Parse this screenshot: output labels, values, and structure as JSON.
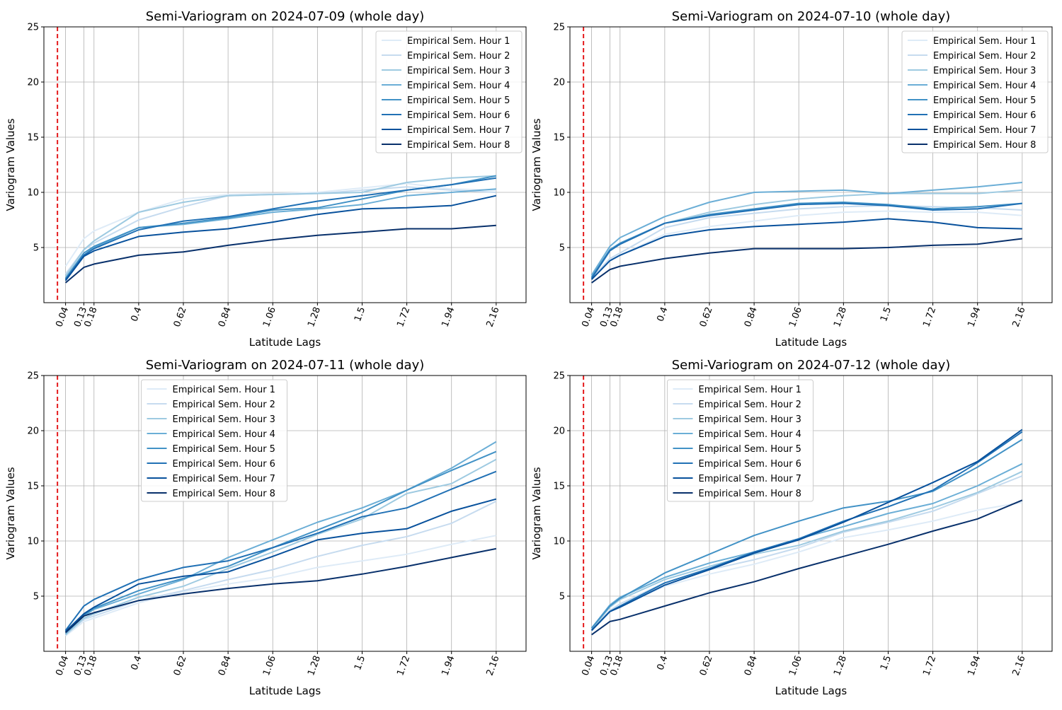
{
  "colors": {
    "hours": [
      "#deebf7",
      "#c6dbef",
      "#9ecae1",
      "#6baed6",
      "#4292c6",
      "#2171b5",
      "#08519c",
      "#08306b"
    ],
    "vline": "#e41a1c",
    "grid": "#b0b0b0"
  },
  "chart_data": [
    {
      "type": "line",
      "title": "Semi-Variogram on 2024-07-09 (whole day)",
      "xlabel": "Latitude Lags",
      "ylabel": "Variogram Values",
      "x": [
        0.04,
        0.13,
        0.18,
        0.4,
        0.62,
        0.84,
        1.06,
        1.28,
        1.5,
        1.72,
        1.94,
        2.16
      ],
      "x_tick_labels": [
        "0.04",
        "0.13",
        "0.18",
        "0.4",
        "0.62",
        "0.84",
        "1.06",
        "1.28",
        "1.5",
        "1.72",
        "1.94",
        "2.16"
      ],
      "y_ticks": [
        5,
        10,
        15,
        20,
        25
      ],
      "ylim": [
        0,
        25
      ],
      "vline_x": 0.0,
      "legend_position": "top-right",
      "series": [
        {
          "name": "Empirical Sem. Hour 1",
          "values": [
            3.3,
            5.8,
            6.5,
            8.2,
            9.4,
            9.8,
            9.9,
            10.0,
            10.4,
            10.8,
            10.3,
            10.2
          ]
        },
        {
          "name": "Empirical Sem. Hour 2",
          "values": [
            2.6,
            4.8,
            5.4,
            7.5,
            8.7,
            9.7,
            9.8,
            9.9,
            10.2,
            10.5,
            10.2,
            10.0
          ]
        },
        {
          "name": "Empirical Sem. Hour 3",
          "values": [
            2.4,
            4.8,
            5.6,
            8.2,
            9.1,
            9.7,
            9.8,
            9.9,
            10.0,
            10.9,
            11.3,
            11.5
          ]
        },
        {
          "name": "Empirical Sem. Hour 4",
          "values": [
            2.2,
            4.3,
            5.0,
            6.8,
            7.1,
            7.6,
            8.2,
            8.5,
            8.9,
            9.7,
            10.0,
            10.3
          ]
        },
        {
          "name": "Empirical Sem. Hour 5",
          "values": [
            2.2,
            4.5,
            5.1,
            6.8,
            7.2,
            7.7,
            8.4,
            8.6,
            9.4,
            10.2,
            10.7,
            11.5
          ]
        },
        {
          "name": "Empirical Sem. Hour 6",
          "values": [
            2.1,
            4.3,
            4.9,
            6.6,
            7.4,
            7.8,
            8.5,
            9.2,
            9.7,
            10.2,
            10.7,
            11.3
          ]
        },
        {
          "name": "Empirical Sem. Hour 7",
          "values": [
            2.0,
            4.2,
            4.7,
            6.0,
            6.4,
            6.7,
            7.3,
            8.0,
            8.5,
            8.6,
            8.8,
            9.7
          ]
        },
        {
          "name": "Empirical Sem. Hour 8",
          "values": [
            1.8,
            3.2,
            3.5,
            4.3,
            4.6,
            5.2,
            5.7,
            6.1,
            6.4,
            6.7,
            6.7,
            7.0
          ]
        }
      ]
    },
    {
      "type": "line",
      "title": "Semi-Variogram on 2024-07-10 (whole day)",
      "xlabel": "Latitude Lags",
      "ylabel": "Variogram Values",
      "x": [
        0.04,
        0.13,
        0.18,
        0.4,
        0.62,
        0.84,
        1.06,
        1.28,
        1.5,
        1.72,
        1.94,
        2.16
      ],
      "x_tick_labels": [
        "0.04",
        "0.13",
        "0.18",
        "0.4",
        "0.62",
        "0.84",
        "1.06",
        "1.28",
        "1.5",
        "1.72",
        "1.94",
        "2.16"
      ],
      "y_ticks": [
        5,
        10,
        15,
        20,
        25
      ],
      "ylim": [
        0,
        25
      ],
      "vline_x": 0.0,
      "legend_position": "top-right",
      "series": [
        {
          "name": "Empirical Sem. Hour 1",
          "values": [
            2.2,
            3.9,
            4.3,
            6.2,
            6.9,
            7.4,
            7.9,
            8.2,
            8.3,
            8.2,
            8.2,
            7.9
          ]
        },
        {
          "name": "Empirical Sem. Hour 2",
          "values": [
            2.2,
            4.0,
            4.5,
            6.8,
            7.7,
            8.1,
            8.5,
            8.7,
            8.8,
            8.7,
            8.6,
            8.4
          ]
        },
        {
          "name": "Empirical Sem. Hour 3",
          "values": [
            2.4,
            4.8,
            5.3,
            7.2,
            8.2,
            8.9,
            9.4,
            9.7,
            9.9,
            9.9,
            9.9,
            10.2
          ]
        },
        {
          "name": "Empirical Sem. Hour 4",
          "values": [
            2.5,
            5.1,
            5.9,
            7.8,
            9.1,
            10.0,
            10.1,
            10.2,
            9.9,
            10.2,
            10.5,
            10.9
          ]
        },
        {
          "name": "Empirical Sem. Hour 5",
          "values": [
            2.3,
            4.8,
            5.4,
            7.2,
            8.0,
            8.5,
            9.0,
            9.1,
            8.9,
            8.5,
            8.7,
            9.0
          ]
        },
        {
          "name": "Empirical Sem. Hour 6",
          "values": [
            2.2,
            4.7,
            5.3,
            7.2,
            7.9,
            8.4,
            8.9,
            9.0,
            8.8,
            8.4,
            8.5,
            9.0
          ]
        },
        {
          "name": "Empirical Sem. Hour 7",
          "values": [
            2.1,
            3.8,
            4.3,
            6.0,
            6.6,
            6.9,
            7.1,
            7.3,
            7.6,
            7.3,
            6.8,
            6.7
          ]
        },
        {
          "name": "Empirical Sem. Hour 8",
          "values": [
            1.8,
            3.0,
            3.3,
            4.0,
            4.5,
            4.9,
            4.9,
            4.9,
            5.0,
            5.2,
            5.3,
            5.8
          ]
        }
      ]
    },
    {
      "type": "line",
      "title": "Semi-Variogram on 2024-07-11 (whole day)",
      "xlabel": "Latitude Lags",
      "ylabel": "Variogram Values",
      "x": [
        0.04,
        0.13,
        0.18,
        0.4,
        0.62,
        0.84,
        1.06,
        1.28,
        1.5,
        1.72,
        1.94,
        2.16
      ],
      "x_tick_labels": [
        "0.04",
        "0.13",
        "0.18",
        "0.4",
        "0.62",
        "0.84",
        "1.06",
        "1.28",
        "1.5",
        "1.72",
        "1.94",
        "2.16"
      ],
      "y_ticks": [
        5,
        10,
        15,
        20,
        25
      ],
      "ylim": [
        0,
        25
      ],
      "vline_x": 0.0,
      "legend_position": "upper center",
      "series": [
        {
          "name": "Empirical Sem. Hour 1",
          "values": [
            1.4,
            2.7,
            3.0,
            4.4,
            5.4,
            6.1,
            6.7,
            7.6,
            8.2,
            8.8,
            9.7,
            10.5
          ]
        },
        {
          "name": "Empirical Sem. Hour 2",
          "values": [
            1.5,
            2.9,
            3.2,
            4.6,
            5.5,
            6.5,
            7.4,
            8.6,
            9.6,
            10.4,
            11.6,
            13.6
          ]
        },
        {
          "name": "Empirical Sem. Hour 3",
          "values": [
            1.5,
            3.0,
            3.4,
            4.9,
            5.9,
            7.5,
            9.0,
            10.6,
            12.0,
            14.3,
            15.2,
            17.4
          ]
        },
        {
          "name": "Empirical Sem. Hour 4",
          "values": [
            1.6,
            3.2,
            3.8,
            5.2,
            6.5,
            8.5,
            10.1,
            11.7,
            13.0,
            14.6,
            16.6,
            19.0
          ]
        },
        {
          "name": "Empirical Sem. Hour 5",
          "values": [
            1.8,
            3.3,
            3.9,
            5.5,
            6.6,
            7.7,
            9.4,
            11.0,
            12.6,
            14.6,
            16.4,
            18.1
          ]
        },
        {
          "name": "Empirical Sem. Hour 6",
          "values": [
            1.9,
            4.1,
            4.7,
            6.5,
            7.6,
            8.2,
            9.4,
            10.7,
            12.2,
            13.0,
            14.7,
            16.3
          ]
        },
        {
          "name": "Empirical Sem. Hour 7",
          "values": [
            1.8,
            3.4,
            4.0,
            6.1,
            6.8,
            7.2,
            8.6,
            10.1,
            10.7,
            11.1,
            12.7,
            13.8
          ]
        },
        {
          "name": "Empirical Sem. Hour 8",
          "values": [
            1.7,
            3.2,
            3.5,
            4.6,
            5.2,
            5.7,
            6.1,
            6.4,
            7.0,
            7.7,
            8.5,
            9.3
          ]
        }
      ]
    },
    {
      "type": "line",
      "title": "Semi-Variogram on 2024-07-12 (whole day)",
      "xlabel": "Latitude Lags",
      "ylabel": "Variogram Values",
      "x": [
        0.04,
        0.13,
        0.18,
        0.4,
        0.62,
        0.84,
        1.06,
        1.28,
        1.5,
        1.72,
        1.94,
        2.16
      ],
      "x_tick_labels": [
        "0.04",
        "0.13",
        "0.18",
        "0.4",
        "0.62",
        "0.84",
        "1.06",
        "1.28",
        "1.5",
        "1.72",
        "1.94",
        "2.16"
      ],
      "y_ticks": [
        5,
        10,
        15,
        20,
        25
      ],
      "ylim": [
        0,
        25
      ],
      "vline_x": 0.0,
      "legend_position": "upper center",
      "series": [
        {
          "name": "Empirical Sem. Hour 1",
          "values": [
            1.8,
            3.6,
            4.1,
            5.9,
            7.0,
            7.9,
            9.0,
            10.3,
            11.0,
            11.8,
            12.8,
            13.5
          ]
        },
        {
          "name": "Empirical Sem. Hour 2",
          "values": [
            1.9,
            3.7,
            4.3,
            6.2,
            7.4,
            8.3,
            9.4,
            10.8,
            11.7,
            12.7,
            14.3,
            15.9
          ]
        },
        {
          "name": "Empirical Sem. Hour 3",
          "values": [
            2.0,
            4.0,
            4.7,
            6.5,
            7.7,
            8.8,
            9.6,
            10.9,
            11.8,
            13.0,
            14.4,
            16.3
          ]
        },
        {
          "name": "Empirical Sem. Hour 4",
          "values": [
            2.1,
            4.2,
            4.9,
            6.7,
            8.0,
            9.0,
            10.2,
            11.3,
            12.5,
            13.4,
            15.0,
            17.0
          ]
        },
        {
          "name": "Empirical Sem. Hour 5",
          "values": [
            2.1,
            4.1,
            4.8,
            7.1,
            8.8,
            10.5,
            11.8,
            13.0,
            13.6,
            14.5,
            16.7,
            19.2
          ]
        },
        {
          "name": "Empirical Sem. Hour 6",
          "values": [
            1.9,
            3.6,
            4.1,
            6.2,
            7.5,
            9.0,
            10.2,
            11.8,
            13.1,
            14.6,
            17.1,
            19.9
          ]
        },
        {
          "name": "Empirical Sem. Hour 7",
          "values": [
            1.9,
            3.6,
            4.0,
            6.0,
            7.4,
            8.9,
            10.1,
            11.7,
            13.5,
            15.3,
            17.2,
            20.1
          ]
        },
        {
          "name": "Empirical Sem. Hour 8",
          "values": [
            1.5,
            2.7,
            2.9,
            4.1,
            5.3,
            6.3,
            7.5,
            8.6,
            9.7,
            10.9,
            12.0,
            13.7
          ]
        }
      ]
    }
  ]
}
